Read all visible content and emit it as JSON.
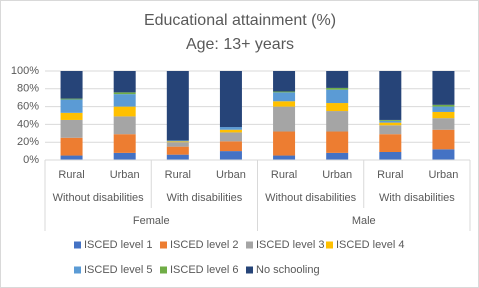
{
  "chart_data": {
    "type": "stacked_bar",
    "title": "Educational attainment (%)",
    "subtitle": "Age: 13+ years",
    "categories": [
      "Rural",
      "Urban",
      "Rural",
      "Urban",
      "Rural",
      "Urban",
      "Rural",
      "Urban"
    ],
    "groups": [
      "Without disabilities",
      "With disabilities",
      "Without disabilities",
      "With disabilities"
    ],
    "supergroups": [
      "Female",
      "Male"
    ],
    "ylim": [
      0,
      100
    ],
    "yticks": [
      {
        "value": 0,
        "label": "0%"
      },
      {
        "value": 20,
        "label": "20%"
      },
      {
        "value": 40,
        "label": "40%"
      },
      {
        "value": 60,
        "label": "60%"
      },
      {
        "value": 80,
        "label": "80%"
      },
      {
        "value": 100,
        "label": "100%"
      }
    ],
    "grid": true,
    "series": [
      {
        "name": "ISCED level 1",
        "color": "#4472c4",
        "values": [
          5,
          8,
          6,
          10,
          5,
          8,
          9,
          12
        ]
      },
      {
        "name": "ISCED level 2",
        "color": "#ed7d31",
        "values": [
          20,
          21,
          9,
          11,
          27,
          24,
          20,
          22
        ]
      },
      {
        "name": "ISCED level 3",
        "color": "#a5a5a5",
        "values": [
          20,
          20,
          5,
          10,
          28,
          23,
          10,
          13
        ]
      },
      {
        "name": "ISCED level 4",
        "color": "#ffc000",
        "values": [
          8,
          11,
          1,
          3,
          6,
          9,
          3,
          7
        ]
      },
      {
        "name": "ISCED level 5",
        "color": "#5b9bd5",
        "values": [
          15,
          14,
          1,
          3,
          10,
          15,
          2,
          6
        ]
      },
      {
        "name": "ISCED level 6",
        "color": "#70ad47",
        "values": [
          1,
          2,
          0,
          0,
          1,
          2,
          1,
          2
        ]
      },
      {
        "name": "No schooling",
        "color": "#264478",
        "values": [
          31,
          24,
          78,
          63,
          23,
          19,
          55,
          38
        ]
      }
    ]
  }
}
